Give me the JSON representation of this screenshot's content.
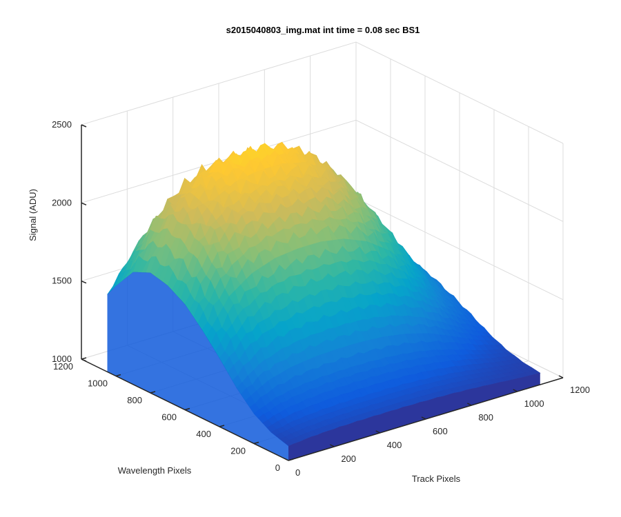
{
  "chart_data": {
    "type": "surface3d",
    "title": "s2015040803_img.mat int time = 0.08 sec   BS1",
    "xlabel": "Track Pixels",
    "ylabel": "Wavelength Pixels",
    "zlabel": "Signal (ADU)",
    "xlim": [
      0,
      1200
    ],
    "ylim": [
      0,
      1200
    ],
    "zlim": [
      1000,
      2500
    ],
    "xticks": [
      "0",
      "200",
      "400",
      "600",
      "800",
      "1000",
      "1200"
    ],
    "yticks": [
      "0",
      "200",
      "400",
      "600",
      "800",
      "1000",
      "1200"
    ],
    "zticks": [
      "1000",
      "1500",
      "2000",
      "2500"
    ],
    "grid": true,
    "colormap": "parula",
    "colormap_colors": [
      "#352a87",
      "#0f5cdd",
      "#1481d6",
      "#06a4ca",
      "#2eb7a4",
      "#87bf77",
      "#d1bb59",
      "#fec832",
      "#f9fb0e"
    ],
    "surface_extent": {
      "track_pixels": [
        0,
        1100
      ],
      "wavelength_pixels": [
        0,
        1050
      ]
    },
    "profile_along_wavelength": {
      "wavelength_pixels": [
        0,
        100,
        200,
        300,
        400,
        500,
        600,
        700,
        800,
        900,
        1000,
        1050
      ],
      "peak_signal": [
        1120,
        1180,
        1300,
        1500,
        1750,
        1980,
        2180,
        2300,
        2350,
        2260,
        2000,
        1850
      ]
    },
    "profile_along_track": {
      "track_pixels": [
        0,
        100,
        200,
        300,
        400,
        500,
        600,
        700,
        800,
        900,
        1000,
        1100
      ],
      "relative_signal": [
        0.55,
        0.8,
        0.92,
        0.98,
        1.0,
        1.0,
        0.97,
        0.9,
        0.78,
        0.6,
        0.4,
        0.25
      ]
    },
    "baseline_signal": 1060
  }
}
